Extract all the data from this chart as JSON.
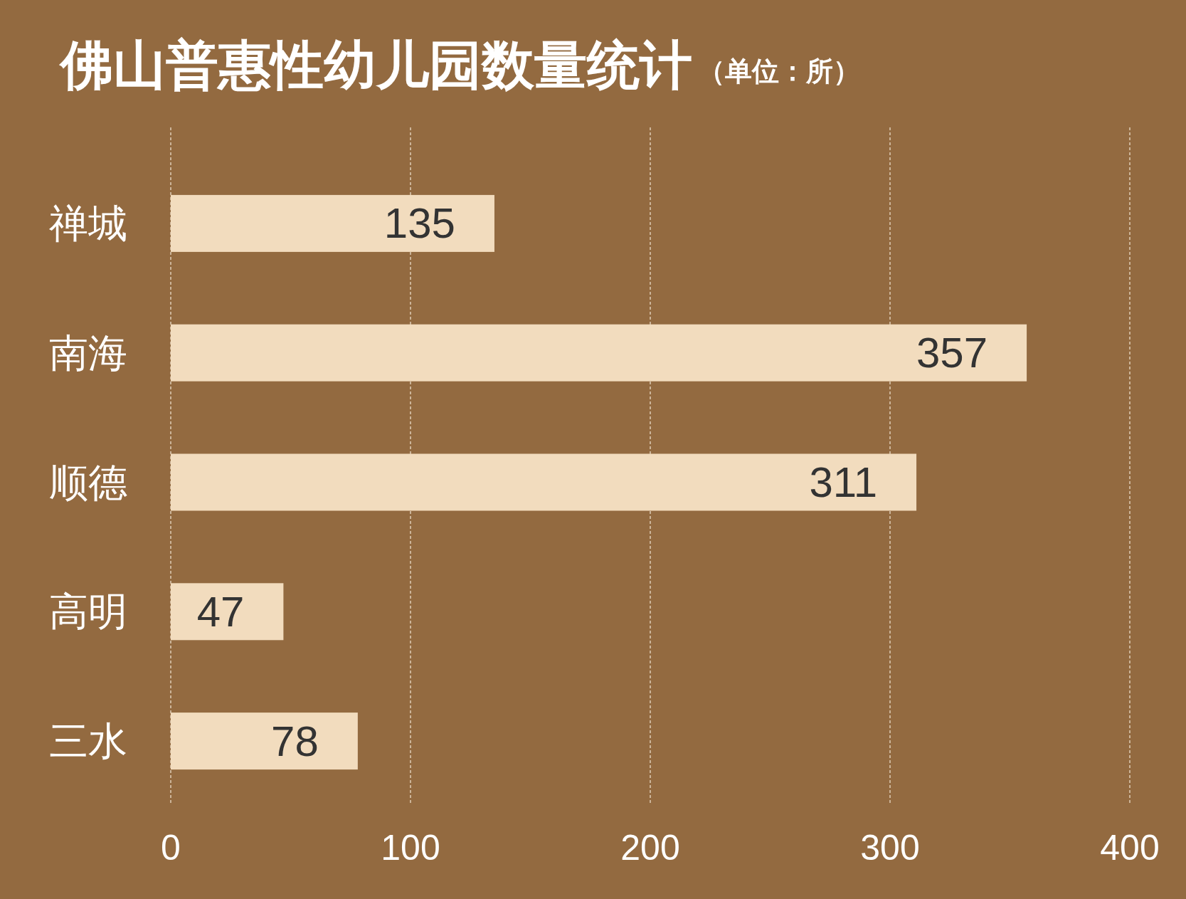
{
  "chart_data": {
    "type": "bar",
    "orientation": "horizontal",
    "title": "佛山普惠性幼儿园数量统计",
    "subtitle": "（单位：所）",
    "categories": [
      "禅城",
      "南海",
      "顺德",
      "高明",
      "三水"
    ],
    "values": [
      135,
      357,
      311,
      47,
      78
    ],
    "color": "#f2dcbe",
    "xlim": [
      0,
      400
    ],
    "xticks": [
      0,
      100,
      200,
      300,
      400
    ],
    "grid": "x",
    "data_labels": true
  }
}
